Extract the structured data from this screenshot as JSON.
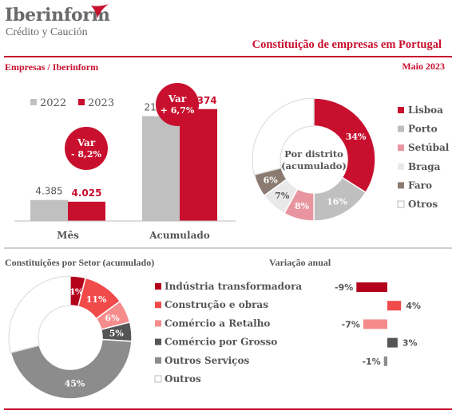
{
  "header": {
    "logo_name": "Iberinform",
    "logo_sub": "Crédito y Caución",
    "title": "Constituição de empresas em Portugal",
    "section": "Empresas / Iberinform",
    "date": "Maio 2023"
  },
  "colors": {
    "red": "#c8102e",
    "gray": "#c0c0c0",
    "dark_gray": "#666666"
  },
  "chart_data": [
    {
      "type": "bar",
      "categories": [
        "Mês",
        "Acumulado"
      ],
      "series": [
        {
          "name": "2022",
          "values": [
            4385,
            21898
          ],
          "labels": [
            "4.385",
            "21.898"
          ],
          "color": "#c0c0c0"
        },
        {
          "name": "2023",
          "values": [
            4025,
            23374
          ],
          "labels": [
            "4.025",
            "23.374"
          ],
          "color": "#c8102e"
        }
      ],
      "annotations": [
        {
          "line1": "Var",
          "line2": "- 8,2%",
          "category": "Mês"
        },
        {
          "line1": "Var",
          "line2": "+ 6,7%",
          "category": "Acumulado"
        }
      ]
    },
    {
      "type": "pie",
      "center_label": [
        "Por distrito",
        "(acumulado)"
      ],
      "slices": [
        {
          "label": "Lisboa",
          "value": 34,
          "text": "34%",
          "color": "#c8102e"
        },
        {
          "label": "Porto",
          "value": 16,
          "text": "16%",
          "color": "#bfbfbf"
        },
        {
          "label": "Setúbal",
          "value": 8,
          "text": "8%",
          "color": "#e8959f"
        },
        {
          "label": "Braga",
          "value": 7,
          "text": "7%",
          "color": "#e9e9e9"
        },
        {
          "label": "Faro",
          "value": 6,
          "text": "6%",
          "color": "#8a7a70"
        },
        {
          "label": "Otros",
          "value": 29,
          "text": "",
          "color": "#ffffff"
        }
      ]
    },
    {
      "type": "pie",
      "title": "Constituições por Setor (acumulado)",
      "slices": [
        {
          "label": "Indústria transformadora",
          "value": 4,
          "text": "4%",
          "color": "#b3001b"
        },
        {
          "label": "Construção e obras",
          "value": 11,
          "text": "11%",
          "color": "#f04a4a"
        },
        {
          "label": "Comércio a Retalho",
          "value": 6,
          "text": "6%",
          "color": "#f58b8b"
        },
        {
          "label": "Comércio por Grosso",
          "value": 5,
          "text": "5%",
          "color": "#555555"
        },
        {
          "label": "Outros Serviços",
          "value": 45,
          "text": "45%",
          "color": "#8c8c8c"
        },
        {
          "label": "Outros",
          "value": 29,
          "text": "",
          "color": "#ffffff"
        }
      ]
    },
    {
      "type": "bar",
      "orientation": "horizontal",
      "title": "Variação anual",
      "values": [
        -9,
        4,
        -7,
        3,
        -1
      ],
      "labels": [
        "-9%",
        "4%",
        "-7%",
        "3%",
        "-1%"
      ],
      "colors": [
        "#b3001b",
        "#f04a4a",
        "#f58b8b",
        "#555555",
        "#8c8c8c"
      ]
    }
  ]
}
